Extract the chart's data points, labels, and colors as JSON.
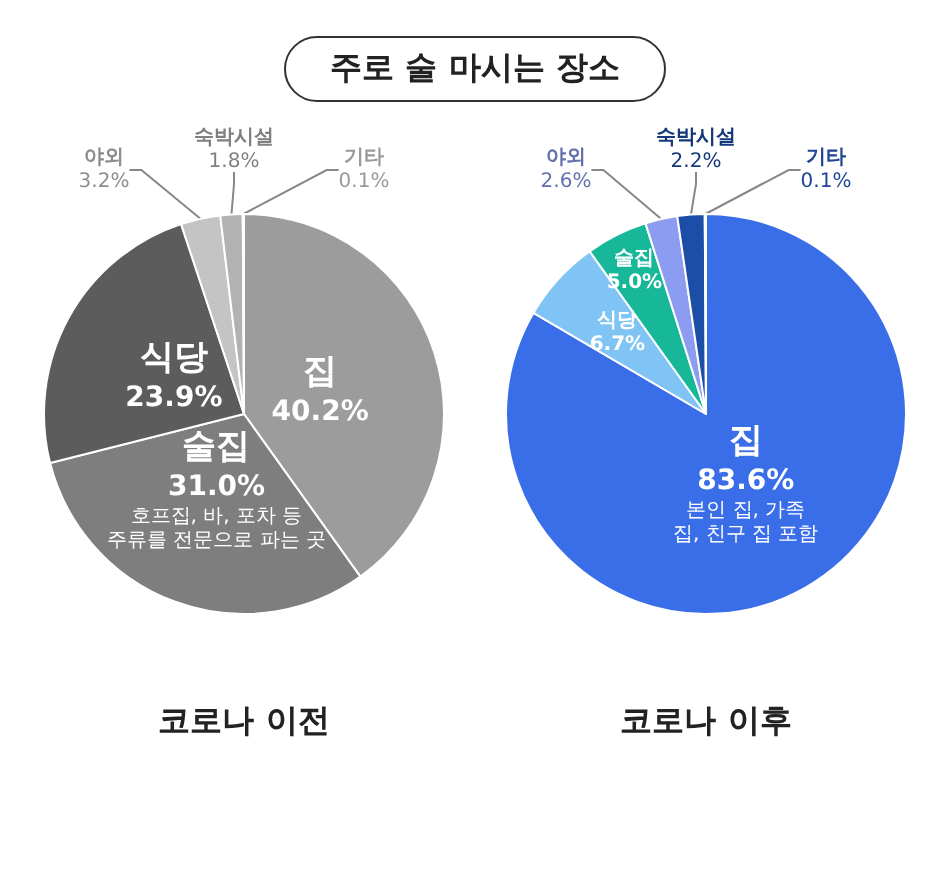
{
  "chart_data": [
    {
      "type": "pie",
      "title": "코로나 이전",
      "annotations": [
        "주로 술 마시는 장소",
        {
          "text": "호프집, 바, 포차 등 주류를 전문으로 파는 곳",
          "x": "술집"
        }
      ],
      "categories": [
        "집",
        "술집",
        "식당",
        "야외",
        "숙박시설",
        "기타"
      ],
      "values": [
        40.2,
        31.0,
        23.9,
        3.2,
        1.8,
        0.1
      ],
      "value_labels": [
        "40.2%",
        "31.0%",
        "23.9%",
        "3.2%",
        "1.8%",
        "0.1%"
      ],
      "colors": [
        "#9c9c9c",
        "#7e7e7e",
        "#5c5c5c",
        "#c4c4c4",
        "#b2b2b2",
        "#d6d6d6"
      ],
      "legend": false
    },
    {
      "type": "pie",
      "title": "코로나 이후",
      "annotations": [
        {
          "text": "본인 집, 가족 집, 친구 집 포함",
          "x": "집"
        }
      ],
      "categories": [
        "집",
        "식당",
        "술집",
        "야외",
        "숙박시설",
        "기타"
      ],
      "values": [
        83.6,
        6.7,
        5.0,
        2.6,
        2.2,
        0.1
      ],
      "value_labels": [
        "83.6%",
        "6.7%",
        "5.0%",
        "2.6%",
        "2.2%",
        "0.1%"
      ],
      "colors": [
        "#3a6ee8",
        "#80c4f5",
        "#17b89a",
        "#8c9cf0",
        "#1c4ea8",
        "#2d5fd0"
      ],
      "legend": false
    }
  ]
}
